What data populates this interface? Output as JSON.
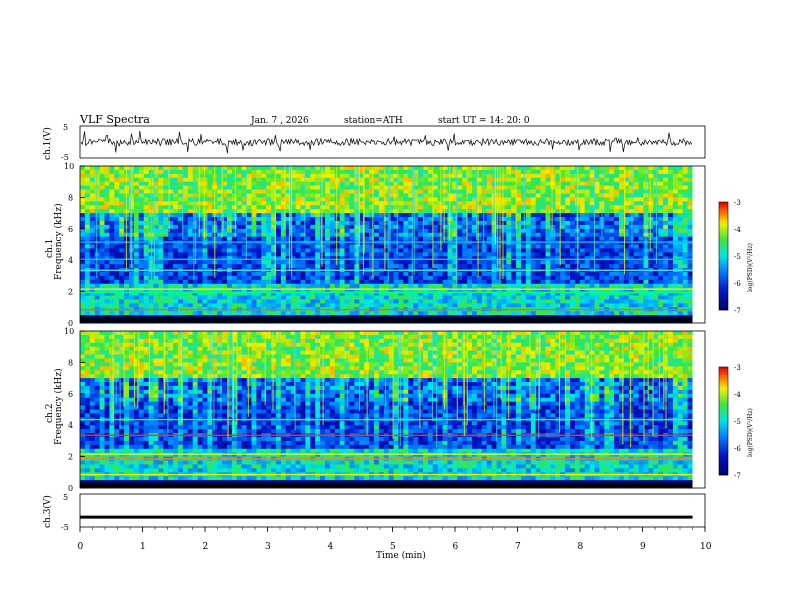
{
  "header": {
    "title": "VLF  Spectra",
    "date": "Jan.  7  , 2026",
    "station": "station=ATH",
    "start": "start  UT  =   14: 20: 0"
  },
  "chart_data": {
    "type": "heatmap",
    "xlabel": "Time  (min)",
    "xlim": [
      0,
      10
    ],
    "xticks": [
      "0",
      "1",
      "2",
      "3",
      "4",
      "5",
      "6",
      "7",
      "8",
      "9",
      "10"
    ],
    "data_end_min": 9.8,
    "panels": [
      {
        "name": "ch1-voltage",
        "type": "line",
        "ylabel": "ch.1(V)",
        "ylim": [
          -5,
          5
        ],
        "yticks": [
          "5",
          "-5"
        ],
        "description_level": "noisy signal centred near 0 V, spikes to about ±3 V"
      },
      {
        "name": "ch1-spectrogram",
        "type": "heatmap",
        "ylabel_top": "ch.1",
        "ylabel": "Frequency  (kHz)",
        "ylim": [
          0,
          10
        ],
        "yticks": [
          "0",
          "2",
          "4",
          "6",
          "8",
          "10"
        ],
        "colorbar": {
          "label": "log(PSD)(V²/Hz)",
          "range": [
            -7,
            -3
          ],
          "ticks": [
            "-3",
            "-4",
            "-5",
            "-6",
            "-7"
          ]
        },
        "features": [
          "high PSD broadband above 7 kHz",
          "narrow-band lines near 2.2, 3.4, 5.2 kHz",
          "vertical sferics throughout"
        ]
      },
      {
        "name": "ch2-spectrogram",
        "type": "heatmap",
        "ylabel_top": "ch.2",
        "ylabel": "Frequency  (kHz)",
        "ylim": [
          0,
          10
        ],
        "yticks": [
          "0",
          "2",
          "4",
          "6",
          "8",
          "10"
        ],
        "colorbar": {
          "label": "log(PSD)(V²/Hz)",
          "range": [
            -7,
            -3
          ],
          "ticks": [
            "-3",
            "-4",
            "-5",
            "-6",
            "-7"
          ]
        },
        "features": [
          "high PSD broadband above 7 kHz",
          "narrow-band lines near 1.9, 3.4, 4.4 kHz",
          "vertical sferics throughout"
        ]
      },
      {
        "name": "ch3-voltage",
        "type": "line",
        "ylabel": "ch.3(V)",
        "ylim": [
          -5,
          5
        ],
        "yticks": [
          "5",
          "-5"
        ],
        "description_level": "flat line near -2 V"
      }
    ]
  }
}
